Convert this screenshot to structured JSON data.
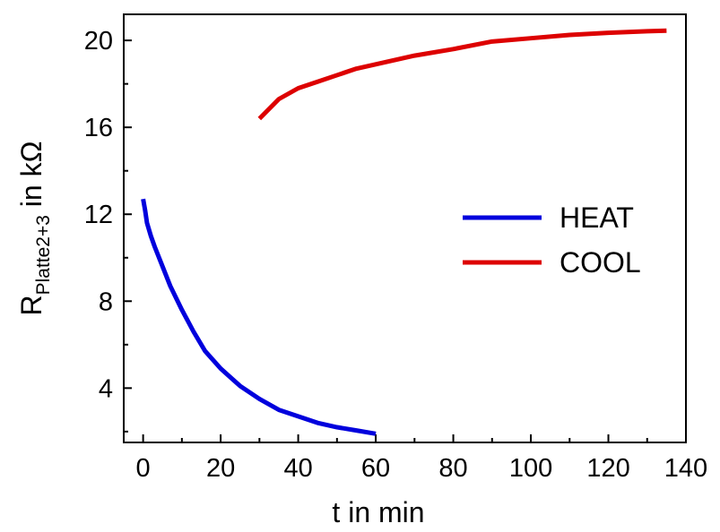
{
  "chart_data": {
    "type": "line",
    "xlabel": "t in min",
    "ylabel": {
      "base": "R",
      "subscript": "Platte2+3",
      "suffix": " in kΩ"
    },
    "xlim": [
      -5,
      140
    ],
    "ylim": [
      1.5,
      21.2
    ],
    "xticks": [
      0,
      20,
      40,
      60,
      80,
      100,
      120,
      140
    ],
    "yticks": [
      4,
      8,
      12,
      16,
      20
    ],
    "legend_position": "center-right",
    "series": [
      {
        "name": "HEAT",
        "color": "#0000dd",
        "points": [
          [
            0,
            12.7
          ],
          [
            0.5,
            12.2
          ],
          [
            1,
            11.6
          ],
          [
            2,
            11.0
          ],
          [
            3,
            10.5
          ],
          [
            5,
            9.6
          ],
          [
            7,
            8.7
          ],
          [
            10,
            7.6
          ],
          [
            13,
            6.6
          ],
          [
            16,
            5.7
          ],
          [
            20,
            4.9
          ],
          [
            25,
            4.1
          ],
          [
            30,
            3.5
          ],
          [
            35,
            3.0
          ],
          [
            40,
            2.7
          ],
          [
            45,
            2.4
          ],
          [
            50,
            2.2
          ],
          [
            55,
            2.05
          ],
          [
            60,
            1.9
          ]
        ]
      },
      {
        "name": "COOL",
        "color": "#dd0000",
        "points": [
          [
            30,
            16.4
          ],
          [
            35,
            17.3
          ],
          [
            40,
            17.8
          ],
          [
            45,
            18.1
          ],
          [
            50,
            18.4
          ],
          [
            55,
            18.7
          ],
          [
            60,
            18.9
          ],
          [
            70,
            19.3
          ],
          [
            80,
            19.6
          ],
          [
            90,
            19.95
          ],
          [
            100,
            20.1
          ],
          [
            110,
            20.25
          ],
          [
            120,
            20.35
          ],
          [
            130,
            20.42
          ],
          [
            135,
            20.45
          ]
        ]
      }
    ]
  }
}
